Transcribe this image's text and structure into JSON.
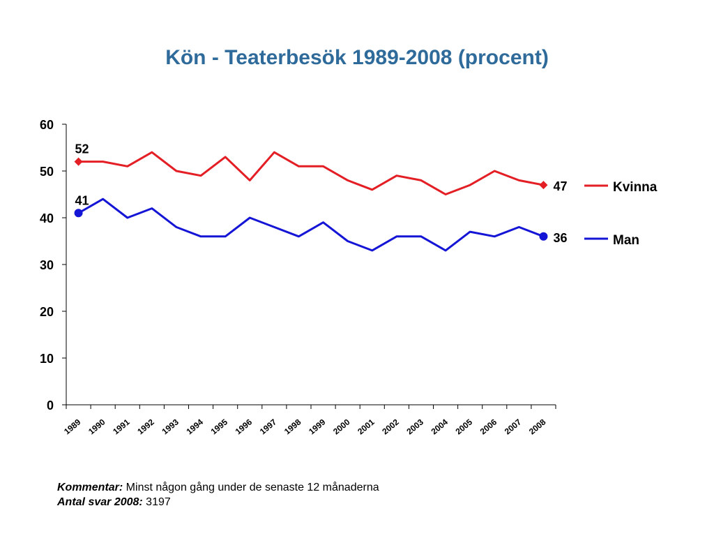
{
  "chart_data": {
    "type": "line",
    "title": "Kön - Teaterbesök 1989-2008 (procent)",
    "xlabel": "",
    "ylabel": "",
    "ylim": [
      0,
      60
    ],
    "yticks": [
      0,
      10,
      20,
      30,
      40,
      50,
      60
    ],
    "grid": false,
    "legend_position": "right",
    "categories": [
      "1989",
      "1990",
      "1991",
      "1992",
      "1993",
      "1994",
      "1995",
      "1996",
      "1997",
      "1998",
      "1999",
      "2000",
      "2001",
      "2002",
      "2003",
      "2004",
      "2005",
      "2006",
      "2007",
      "2008"
    ],
    "series": [
      {
        "name": "Kvinna",
        "color": "#e31e24",
        "marker": "diamond",
        "values": [
          52,
          52,
          51,
          54,
          50,
          49,
          53,
          48,
          54,
          51,
          51,
          48,
          46,
          49,
          48,
          45,
          47,
          50,
          48,
          47
        ],
        "labels": {
          "first": "52",
          "last": "47"
        }
      },
      {
        "name": "Man",
        "color": "#1515d6",
        "marker": "circle",
        "values": [
          41,
          44,
          40,
          42,
          38,
          36,
          36,
          40,
          38,
          36,
          39,
          35,
          33,
          36,
          36,
          33,
          37,
          36,
          38,
          36
        ],
        "labels": {
          "first": "41",
          "last": "36"
        }
      }
    ]
  },
  "footer": {
    "comment_label": "Kommentar:",
    "comment_text": " Minst någon gång under de senaste 12 månaderna",
    "count_label": "Antal svar 2008:",
    "count_text": " 3197"
  }
}
